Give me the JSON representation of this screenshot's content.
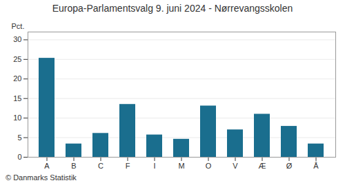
{
  "chart_data": {
    "type": "bar",
    "title": "Europa-Parlamentsvalg 9. juni 2024 - Nørrevangsskolen",
    "ylabel": "Pct.",
    "caption": "© Danmarks Statistik",
    "categories": [
      "A",
      "B",
      "C",
      "F",
      "I",
      "M",
      "O",
      "V",
      "Æ",
      "Ø",
      "Å"
    ],
    "values": [
      25.3,
      3.4,
      6.1,
      13.5,
      5.7,
      4.6,
      13.1,
      7.0,
      11.0,
      7.9,
      3.4
    ],
    "color": "#1a6e8e",
    "ylim": [
      0,
      32
    ],
    "yticks": [
      0,
      5,
      10,
      15,
      20,
      25,
      30
    ],
    "grid": true
  }
}
